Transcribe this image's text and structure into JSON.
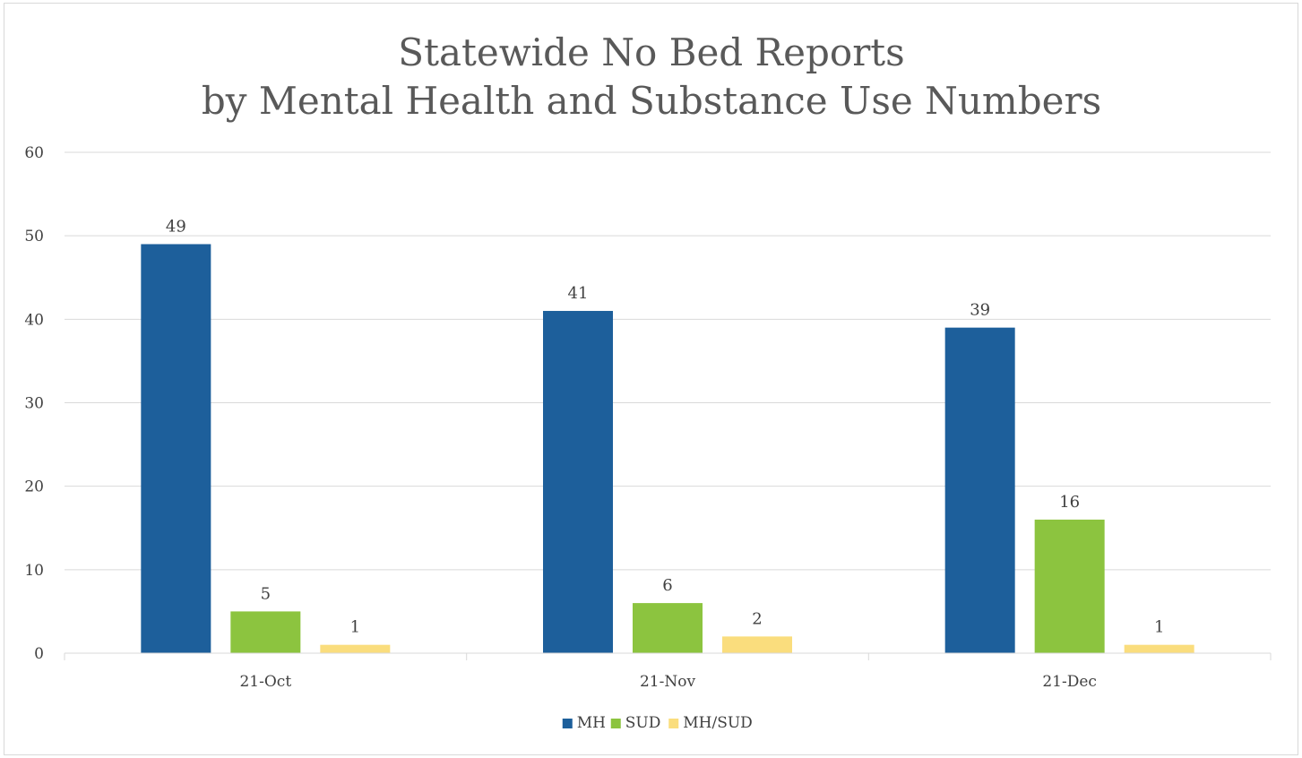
{
  "chart_data": {
    "type": "bar",
    "title": "Statewide No Bed Reports",
    "subtitle": "by Mental Health and Substance Use Numbers",
    "xlabel": "",
    "ylabel": "",
    "categories": [
      "21-Oct",
      "21-Nov",
      "21-Dec"
    ],
    "series": [
      {
        "name": "MH",
        "color": "#1d5f9b",
        "values": [
          49,
          41,
          39
        ]
      },
      {
        "name": "SUD",
        "color": "#8cc43f",
        "values": [
          5,
          6,
          16
        ]
      },
      {
        "name": "MH/SUD",
        "color": "#fadd7d",
        "values": [
          1,
          2,
          1
        ]
      }
    ],
    "ylim": [
      0,
      60
    ],
    "yticks": [
      0,
      10,
      20,
      30,
      40,
      50,
      60
    ],
    "grid": true,
    "data_labels": true,
    "legend_position": "bottom"
  },
  "colors": {
    "gridline": "#d9d9d9",
    "axis_text": "#404040",
    "title_text": "#595959"
  }
}
